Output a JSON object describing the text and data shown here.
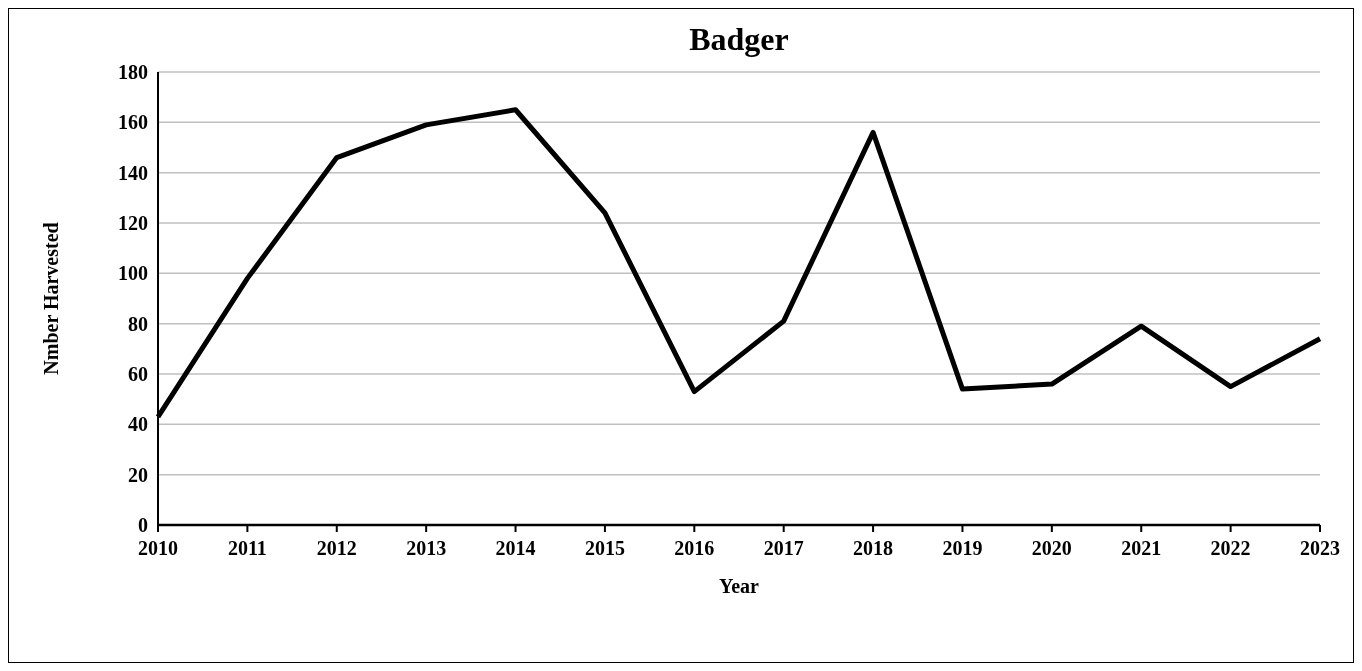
{
  "chart_data": {
    "type": "line",
    "title": "Badger",
    "xlabel": "Year",
    "ylabel": "Nmber Harvested",
    "categories": [
      "2010",
      "2011",
      "2012",
      "2013",
      "2014",
      "2015",
      "2016",
      "2017",
      "2018",
      "2019",
      "2020",
      "2021",
      "2022",
      "2023"
    ],
    "series": [
      {
        "color": "#000000",
        "values": [
          43,
          98,
          146,
          159,
          165,
          124,
          53,
          81,
          156,
          54,
          56,
          79,
          55,
          74
        ]
      }
    ],
    "ylim": [
      0,
      180
    ],
    "yticks": [
      0,
      20,
      40,
      60,
      80,
      100,
      120,
      140,
      160,
      180
    ],
    "grid": "y",
    "marker": "none",
    "line_style": "solid"
  }
}
